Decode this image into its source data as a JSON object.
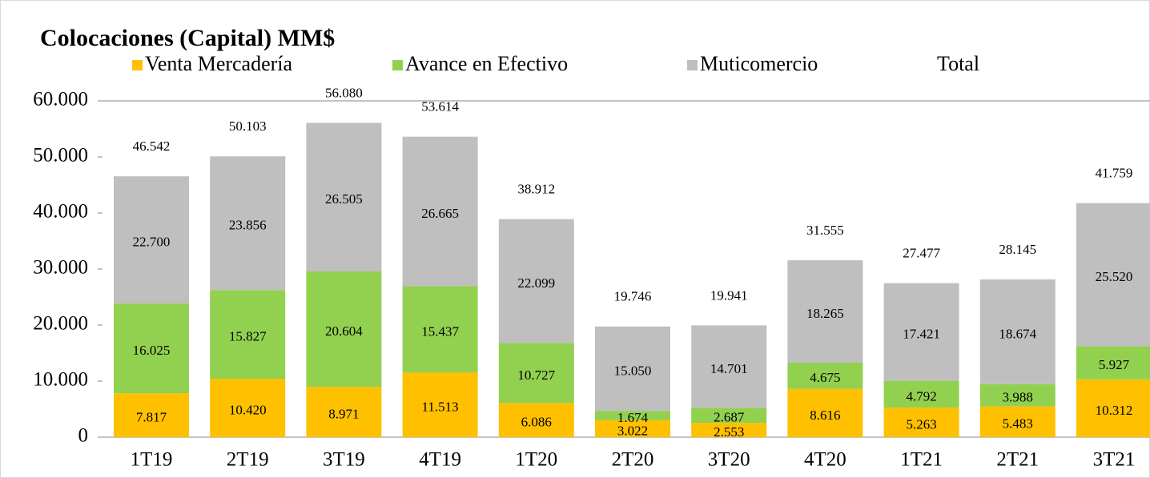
{
  "chart_data": {
    "type": "stacked_bar",
    "title": "Colocaciones   (Capital) MM$",
    "categories": [
      "1T19",
      "2T19",
      "3T19",
      "4T19",
      "1T20",
      "2T20",
      "3T20",
      "4T20",
      "1T21",
      "2T21",
      "3T21"
    ],
    "series": [
      {
        "name": "Venta Mercadería",
        "color": "#ffc000",
        "values": [
          7817,
          10420,
          8971,
          11513,
          6086,
          3022,
          2553,
          8616,
          5263,
          5483,
          10312
        ],
        "value_labels": [
          "7.817",
          "10.420",
          "8.971",
          "11.513",
          "6.086",
          "3.022",
          "2.553",
          "8.616",
          "5.263",
          "5.483",
          "10.312"
        ]
      },
      {
        "name": "Avance en Efectivo",
        "color": "#92d050",
        "values": [
          16025,
          15827,
          20604,
          15437,
          10727,
          1674,
          2687,
          4675,
          4792,
          3988,
          5927
        ],
        "value_labels": [
          "16.025",
          "15.827",
          "20.604",
          "15.437",
          "10.727",
          "1.674",
          "2.687",
          "4.675",
          "4.792",
          "3.988",
          "5.927"
        ]
      },
      {
        "name": "Muticomercio",
        "color": "#bfbfbf",
        "values": [
          22700,
          23856,
          26505,
          26665,
          22099,
          15050,
          14701,
          18265,
          17421,
          18674,
          25520
        ],
        "value_labels": [
          "22.700",
          "23.856",
          "26.505",
          "26.665",
          "22.099",
          "15.050",
          "14.701",
          "18.265",
          "17.421",
          "18.674",
          "25.520"
        ]
      }
    ],
    "total": {
      "name": "Total",
      "values": [
        46542,
        50103,
        56080,
        53614,
        38912,
        19746,
        19941,
        31555,
        27477,
        28145,
        41759
      ],
      "value_labels": [
        "46.542",
        "50.103",
        "56.080",
        "53.614",
        "38.912",
        "19.746",
        "19.941",
        "31.555",
        "27.477",
        "28.145",
        "41.759"
      ]
    },
    "ylim": [
      0,
      60000
    ],
    "yticks": [
      0,
      {
        "value": 10000,
        "label": "10.000"
      },
      {
        "value": 20000,
        "label": "20.000"
      },
      {
        "value": 30000,
        "label": "30.000"
      },
      {
        "value": 40000,
        "label": "40.000"
      },
      {
        "value": 50000,
        "label": "50.000"
      },
      {
        "value": 60000,
        "label": "60.000"
      }
    ],
    "grid": false
  }
}
